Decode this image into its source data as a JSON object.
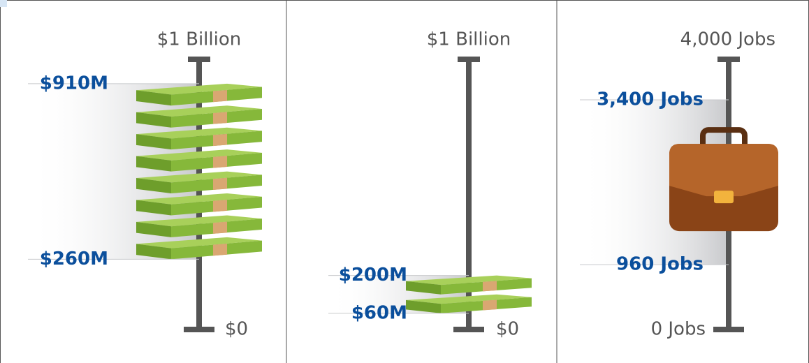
{
  "chart_data": [
    {
      "type": "range",
      "ylim": [
        0,
        1000
      ],
      "yticks": [
        {
          "value": 0,
          "label": "$0"
        },
        {
          "value": 1000,
          "label": "$1 Billion"
        }
      ],
      "values": [
        260,
        910
      ],
      "value_labels": [
        "$260M",
        "$910M"
      ],
      "icon": "money",
      "color": "#0b4f9c"
    },
    {
      "type": "range",
      "ylim": [
        0,
        1000
      ],
      "yticks": [
        {
          "value": 0,
          "label": "$0"
        },
        {
          "value": 1000,
          "label": "$1 Billion"
        }
      ],
      "values": [
        60,
        200
      ],
      "value_labels": [
        "$60M",
        "$200M"
      ],
      "icon": "money",
      "color": "#0b4f9c"
    },
    {
      "type": "range",
      "ylim": [
        0,
        4000
      ],
      "yticks": [
        {
          "value": 0,
          "label": "0 Jobs"
        },
        {
          "value": 4000,
          "label": "4,000 Jobs"
        }
      ],
      "values": [
        960,
        3400
      ],
      "value_labels": [
        "960 Jobs",
        "3,400 Jobs"
      ],
      "icon": "briefcase",
      "color": "#0b4f9c"
    }
  ]
}
